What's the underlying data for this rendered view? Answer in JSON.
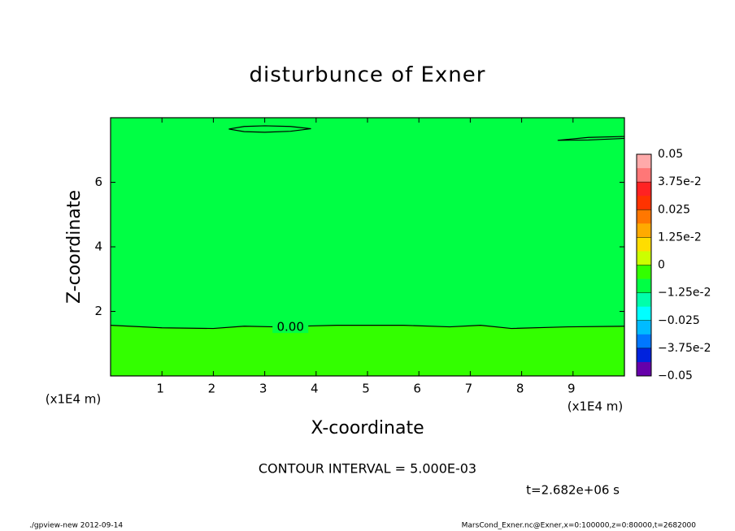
{
  "chart_data": {
    "type": "contour",
    "title": "disturbunce of Exner",
    "x_label": "X-coordinate",
    "y_label": "Z-coordinate",
    "x_unit": "(x1E4 m)",
    "y_unit": "(x1E4 m)",
    "xlim": [
      0,
      10
    ],
    "ylim": [
      0,
      8
    ],
    "xticks": [
      1,
      2,
      3,
      4,
      5,
      6,
      7,
      8,
      9
    ],
    "yticks": [
      2,
      4,
      6
    ],
    "fill_above": "#00ff44",
    "fill_below": "#33ff00",
    "contours": [
      {
        "label": "0.00",
        "label_x": 3.5,
        "x": [
          0,
          1,
          2,
          2.6,
          3.2,
          4.4,
          5.7,
          6.6,
          7.2,
          7.8,
          8.9,
          10
        ],
        "z": [
          1.57,
          1.49,
          1.47,
          1.54,
          1.52,
          1.57,
          1.57,
          1.52,
          1.57,
          1.47,
          1.52,
          1.54
        ]
      },
      {
        "x": [
          2.3,
          2.6,
          3.0,
          3.5,
          3.9,
          3.5,
          3.0,
          2.6,
          2.3
        ],
        "z": [
          7.65,
          7.73,
          7.75,
          7.73,
          7.66,
          7.58,
          7.55,
          7.57,
          7.65
        ]
      },
      {
        "x": [
          10,
          9.3,
          8.7,
          9.3,
          10
        ],
        "z": [
          7.42,
          7.39,
          7.3,
          7.31,
          7.36
        ]
      }
    ],
    "colorbar": {
      "colors": [
        "#ffaaaa",
        "#ff7777",
        "#ff2222",
        "#ff3300",
        "#ff7700",
        "#ffaa00",
        "#ffdd00",
        "#ccff00",
        "#33ff00",
        "#00ff44",
        "#00ffaa",
        "#00ffff",
        "#00bbff",
        "#0077ff",
        "#0022dd",
        "#6600aa"
      ],
      "lim": [
        -0.05,
        0.05
      ],
      "ticks": [
        0.05,
        {
          "value": 0.0375,
          "label": "3.75e-2"
        },
        0.025,
        {
          "value": 0.0125,
          "label": "1.25e-2"
        },
        0,
        {
          "value": -0.0125,
          "label": "−1.25e-2"
        },
        {
          "value": -0.025,
          "label": "−0.025"
        },
        {
          "value": -0.0375,
          "label": "−3.75e-2"
        },
        {
          "value": -0.05,
          "label": "−0.05"
        }
      ]
    },
    "contour_interval": "CONTOUR INTERVAL = 5.000E-03",
    "time": "t=2.682e+06 s",
    "footer_left": "./gpview-new  2012-09-14",
    "footer_right": "MarsCond_Exner.nc@Exner,x=0:100000,z=0:80000,t=2682000"
  }
}
